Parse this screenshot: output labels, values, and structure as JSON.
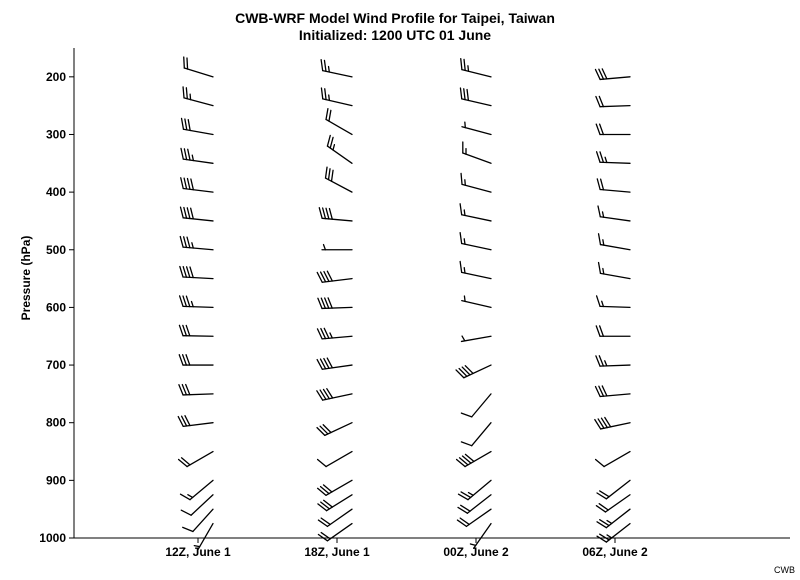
{
  "chart_data": {
    "type": "wind_barb_profile",
    "title": "CWB-WRF Model Wind Profile for Taipei, Taiwan",
    "subtitle": "Initialized: 1200 UTC 01 June",
    "xlabel": "",
    "ylabel": "Pressure (hPa)",
    "ylim": [
      1000,
      150
    ],
    "y_ticks": [
      200,
      300,
      400,
      500,
      600,
      700,
      800,
      900,
      1000
    ],
    "categories": [
      "12Z, June 1",
      "18Z, June 1",
      "00Z, June 2",
      "06Z, June 2"
    ],
    "levels_hpa": [
      200,
      250,
      300,
      350,
      400,
      450,
      500,
      550,
      600,
      650,
      700,
      750,
      800,
      850,
      900,
      925,
      950,
      975
    ],
    "series": [
      {
        "time": "12Z, June 1",
        "barbs": [
          {
            "p": 200,
            "dir": 287,
            "kt": 20
          },
          {
            "p": 250,
            "dir": 285,
            "kt": 25
          },
          {
            "p": 300,
            "dir": 280,
            "kt": 30
          },
          {
            "p": 350,
            "dir": 278,
            "kt": 35
          },
          {
            "p": 400,
            "dir": 277,
            "kt": 40
          },
          {
            "p": 450,
            "dir": 276,
            "kt": 40
          },
          {
            "p": 500,
            "dir": 275,
            "kt": 35
          },
          {
            "p": 550,
            "dir": 273,
            "kt": 40
          },
          {
            "p": 600,
            "dir": 272,
            "kt": 35
          },
          {
            "p": 650,
            "dir": 271,
            "kt": 30
          },
          {
            "p": 700,
            "dir": 270,
            "kt": 30
          },
          {
            "p": 750,
            "dir": 268,
            "kt": 30
          },
          {
            "p": 800,
            "dir": 263,
            "kt": 30
          },
          {
            "p": 850,
            "dir": 240,
            "kt": 20
          },
          {
            "p": 900,
            "dir": 230,
            "kt": 15
          },
          {
            "p": 925,
            "dir": 227,
            "kt": 10
          },
          {
            "p": 950,
            "dir": 222,
            "kt": 10
          },
          {
            "p": 975,
            "dir": 210,
            "kt": 5
          }
        ]
      },
      {
        "time": "18Z, June 1",
        "barbs": [
          {
            "p": 200,
            "dir": 282,
            "kt": 25
          },
          {
            "p": 250,
            "dir": 283,
            "kt": 25
          },
          {
            "p": 300,
            "dir": 300,
            "kt": 20
          },
          {
            "p": 350,
            "dir": 305,
            "kt": 25
          },
          {
            "p": 400,
            "dir": 298,
            "kt": 30
          },
          {
            "p": 450,
            "dir": 275,
            "kt": 40
          },
          {
            "p": 500,
            "dir": 270,
            "kt": 5
          },
          {
            "p": 550,
            "dir": 263,
            "kt": 40
          },
          {
            "p": 600,
            "dir": 268,
            "kt": 40
          },
          {
            "p": 650,
            "dir": 265,
            "kt": 35
          },
          {
            "p": 700,
            "dir": 262,
            "kt": 40
          },
          {
            "p": 750,
            "dir": 258,
            "kt": 40
          },
          {
            "p": 800,
            "dir": 245,
            "kt": 30
          },
          {
            "p": 850,
            "dir": 240,
            "kt": 10
          },
          {
            "p": 900,
            "dir": 240,
            "kt": 30
          },
          {
            "p": 925,
            "dir": 238,
            "kt": 30
          },
          {
            "p": 950,
            "dir": 235,
            "kt": 20
          },
          {
            "p": 975,
            "dir": 235,
            "kt": 20
          }
        ]
      },
      {
        "time": "00Z, June 2",
        "barbs": [
          {
            "p": 200,
            "dir": 284,
            "kt": 25
          },
          {
            "p": 250,
            "dir": 283,
            "kt": 30
          },
          {
            "p": 300,
            "dir": 285,
            "kt": 5
          },
          {
            "p": 350,
            "dir": 290,
            "kt": 15
          },
          {
            "p": 400,
            "dir": 285,
            "kt": 15
          },
          {
            "p": 450,
            "dir": 282,
            "kt": 15
          },
          {
            "p": 500,
            "dir": 282,
            "kt": 15
          },
          {
            "p": 550,
            "dir": 282,
            "kt": 15
          },
          {
            "p": 600,
            "dir": 283,
            "kt": 5
          },
          {
            "p": 650,
            "dir": 260,
            "kt": 5
          },
          {
            "p": 700,
            "dir": 245,
            "kt": 40
          },
          {
            "p": 750,
            "dir": 220,
            "kt": 10
          },
          {
            "p": 800,
            "dir": 220,
            "kt": 10
          },
          {
            "p": 850,
            "dir": 240,
            "kt": 40
          },
          {
            "p": 900,
            "dir": 230,
            "kt": 25
          },
          {
            "p": 925,
            "dir": 232,
            "kt": 20
          },
          {
            "p": 950,
            "dir": 235,
            "kt": 20
          },
          {
            "p": 975,
            "dir": 215,
            "kt": 5
          }
        ]
      },
      {
        "time": "06Z, June 2",
        "barbs": [
          {
            "p": 200,
            "dir": 265,
            "kt": 30
          },
          {
            "p": 250,
            "dir": 268,
            "kt": 20
          },
          {
            "p": 300,
            "dir": 270,
            "kt": 20
          },
          {
            "p": 350,
            "dir": 272,
            "kt": 25
          },
          {
            "p": 400,
            "dir": 275,
            "kt": 20
          },
          {
            "p": 450,
            "dir": 278,
            "kt": 15
          },
          {
            "p": 500,
            "dir": 280,
            "kt": 15
          },
          {
            "p": 550,
            "dir": 280,
            "kt": 15
          },
          {
            "p": 600,
            "dir": 272,
            "kt": 15
          },
          {
            "p": 650,
            "dir": 270,
            "kt": 20
          },
          {
            "p": 700,
            "dir": 268,
            "kt": 25
          },
          {
            "p": 750,
            "dir": 265,
            "kt": 30
          },
          {
            "p": 800,
            "dir": 258,
            "kt": 40
          },
          {
            "p": 850,
            "dir": 240,
            "kt": 10
          },
          {
            "p": 900,
            "dir": 232,
            "kt": 20
          },
          {
            "p": 925,
            "dir": 235,
            "kt": 20
          },
          {
            "p": 950,
            "dir": 232,
            "kt": 25
          },
          {
            "p": 975,
            "dir": 232,
            "kt": 25
          }
        ]
      }
    ],
    "grid": false,
    "legend": "none"
  },
  "credit": "CWB"
}
